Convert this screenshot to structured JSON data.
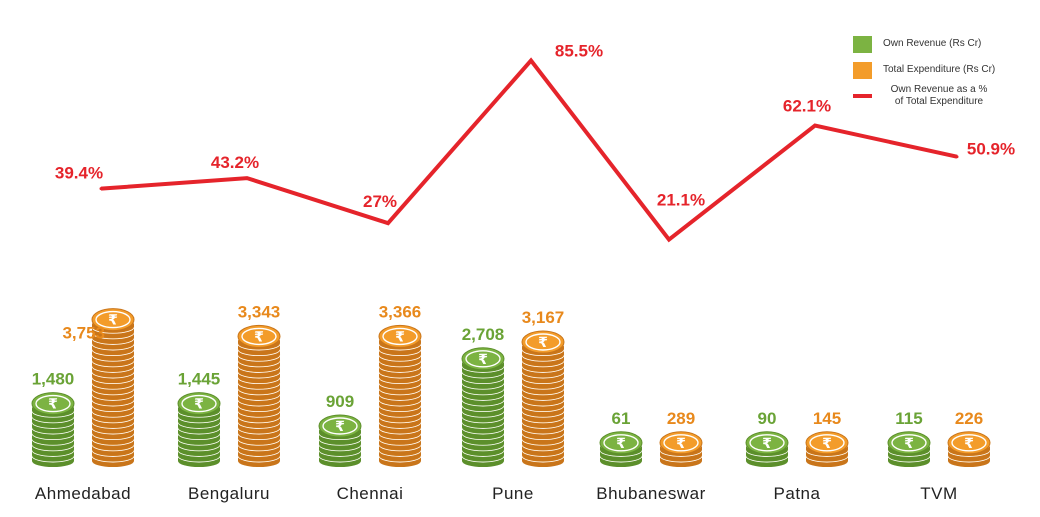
{
  "chart_data": {
    "type": "bar",
    "categories": [
      "Ahmedabad",
      "Bengaluru",
      "Chennai",
      "Pune",
      "Bhubaneswar",
      "Patna",
      "TVM"
    ],
    "series": [
      {
        "name": "Own Revenue (Rs Cr)",
        "kind": "bar",
        "color": "#7cb342",
        "values": [
          1480,
          1445,
          909,
          2708,
          61,
          90,
          115
        ],
        "labels": [
          "1,480",
          "1,445",
          "909",
          "2,708",
          "61",
          "90",
          "115"
        ]
      },
      {
        "name": "Total Expenditure (Rs Cr)",
        "kind": "bar",
        "color": "#f39c2a",
        "values": [
          3753,
          3343,
          3366,
          3167,
          289,
          145,
          226
        ],
        "labels": [
          "3,753",
          "3,343",
          "3,366",
          "3,167",
          "289",
          "145",
          "226"
        ]
      },
      {
        "name": "Own Revenue as a % of Total Expenditure",
        "kind": "line",
        "color": "#e5242b",
        "values": [
          39.4,
          43.2,
          27,
          85.5,
          21.1,
          62.1,
          50.9
        ],
        "labels": [
          "39.4%",
          "43.2%",
          "27%",
          "85.5%",
          "21.1%",
          "62.1%",
          "50.9%"
        ]
      }
    ],
    "xlabel": "",
    "ylabel": "",
    "legend_position": "top-right",
    "grid": false,
    "coin_symbol": "₹"
  },
  "legend": {
    "own_revenue": "Own Revenue (Rs Cr)",
    "total_expenditure": "Total Expenditure (Rs Cr)",
    "ratio_line1": "Own Revenue as a %",
    "ratio_line2": "of Total Expenditure"
  },
  "colors": {
    "green": "#7cb342",
    "orange": "#f39c2a",
    "red": "#e5242b",
    "label_orange": "#e8891c",
    "label_green": "#6aa336",
    "category_text": "#222222"
  }
}
